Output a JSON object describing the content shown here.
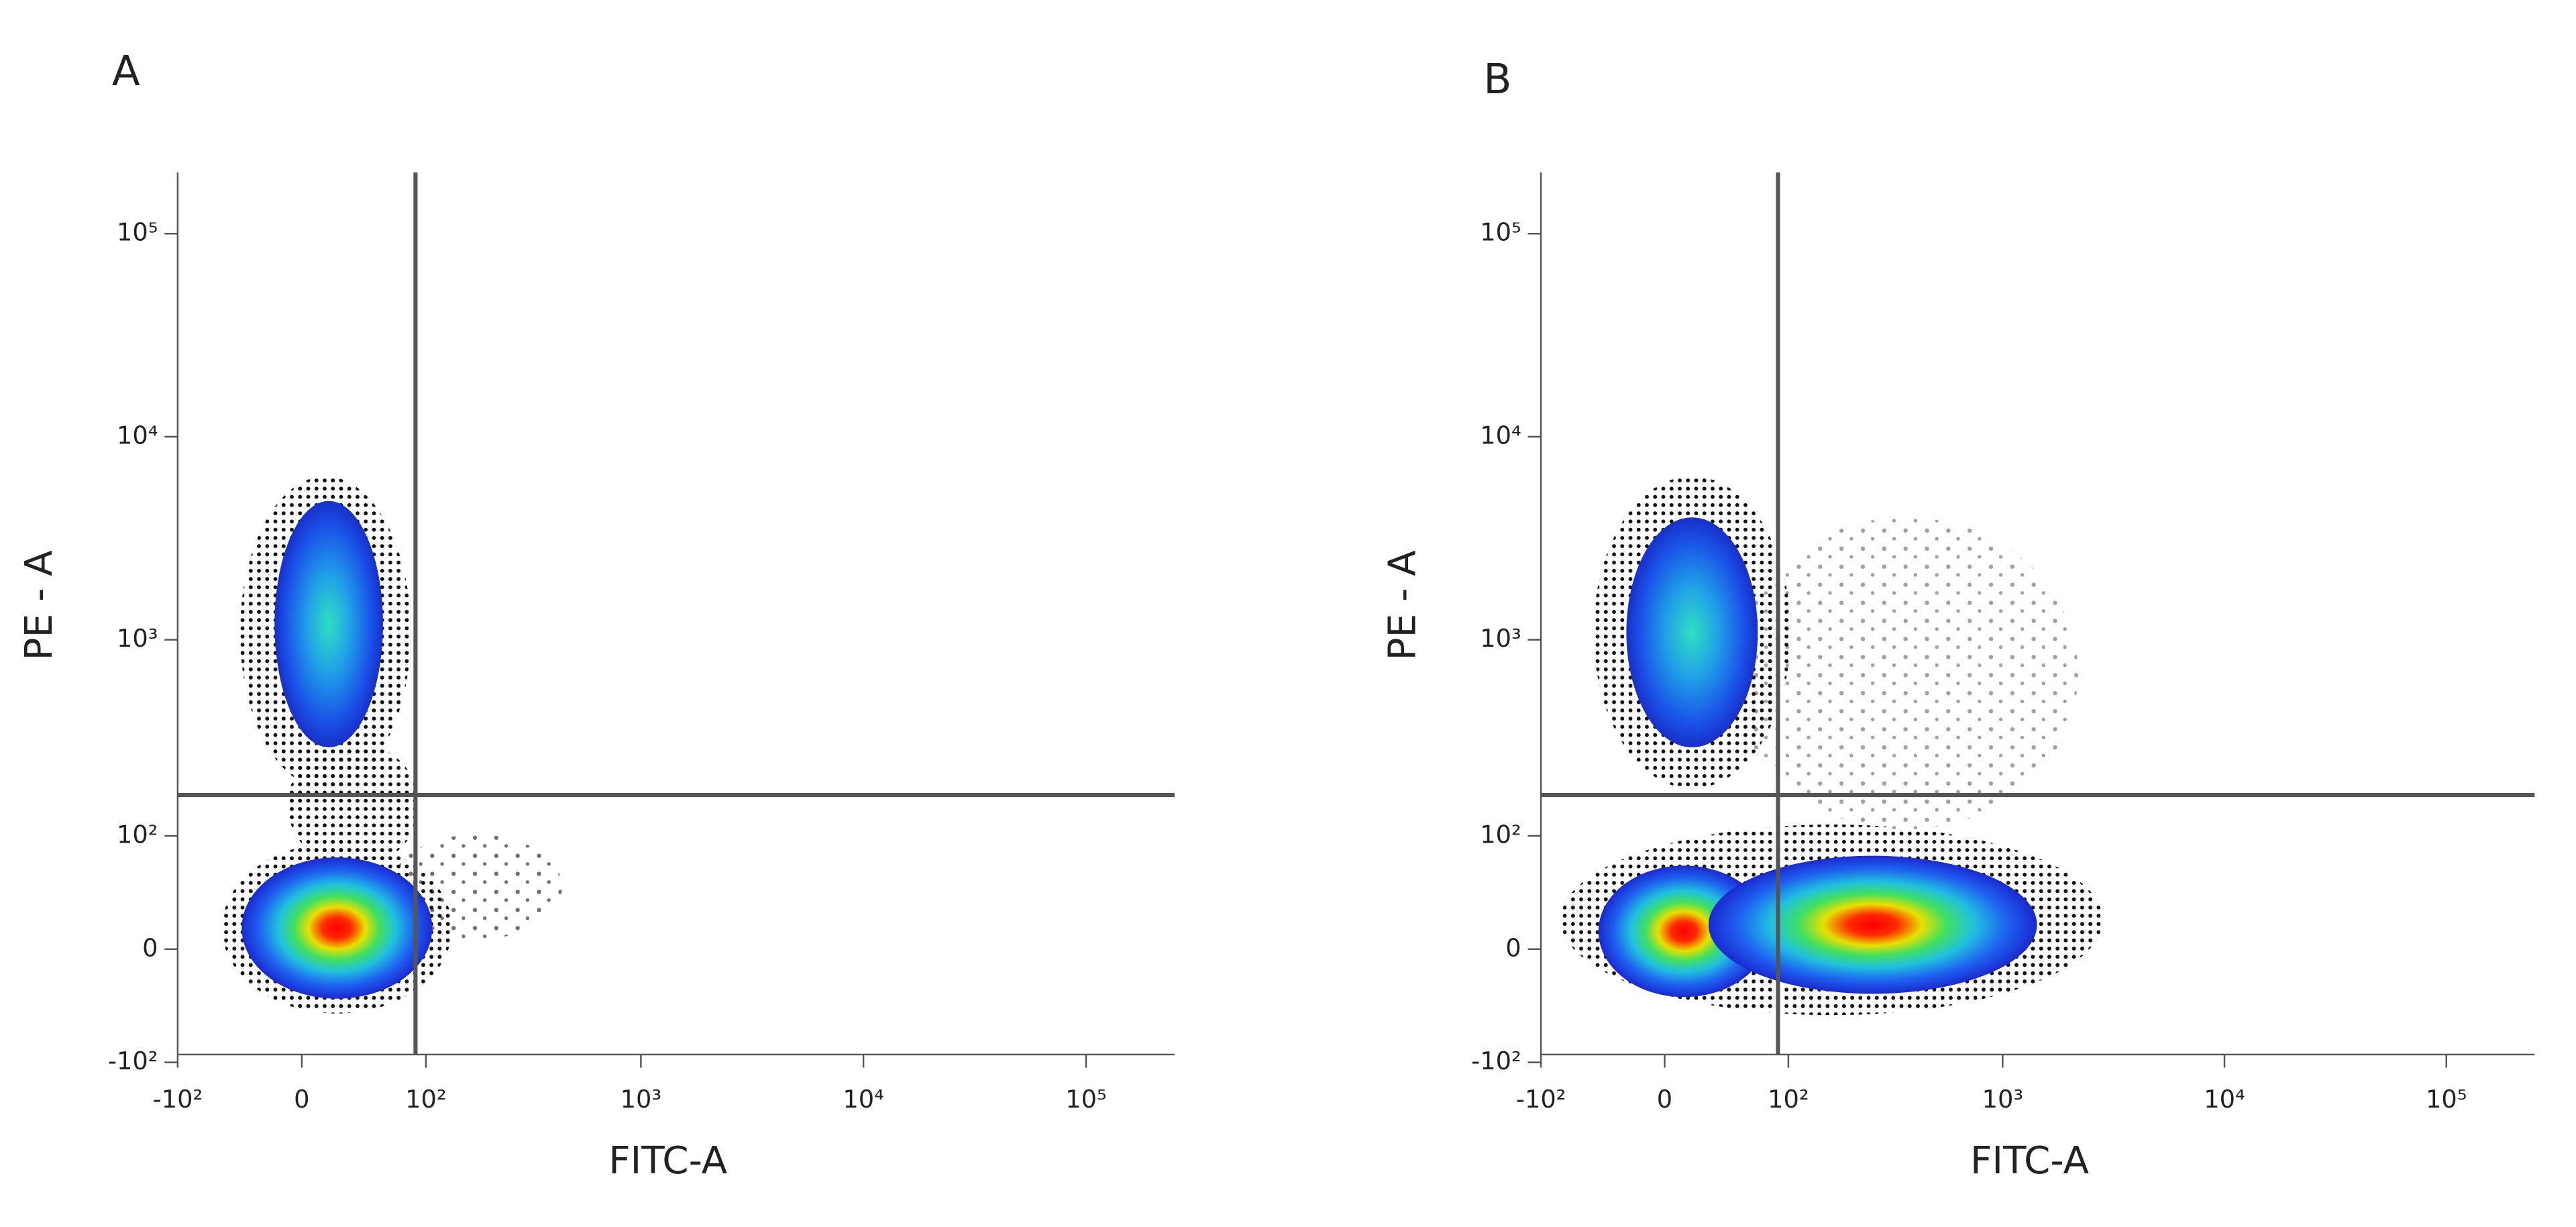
{
  "chart_data": [
    {
      "type": "scatter",
      "panel_label": "A",
      "x_label": "FITC-A",
      "y_label": "PE - A",
      "xscale": "biexponential",
      "yscale": "biexponential",
      "xlim": [
        -100,
        250000
      ],
      "ylim": [
        -90,
        200000
      ],
      "xticks": [
        {
          "value": -100,
          "label": "-10²"
        },
        0,
        {
          "value": 100,
          "label": "10²"
        },
        {
          "value": 1000,
          "label": "10³"
        },
        {
          "value": 10000,
          "label": "10⁴"
        },
        {
          "value": 100000,
          "label": "10⁵"
        }
      ],
      "yticks": [
        {
          "value": -100,
          "label": "-10²"
        },
        0,
        {
          "value": 100,
          "label": "10²"
        },
        {
          "value": 1000,
          "label": "10³"
        },
        {
          "value": 10000,
          "label": "10⁴"
        },
        {
          "value": 100000,
          "label": "10⁵"
        }
      ],
      "gates": {
        "x": 88,
        "y": 167
      }
    },
    {
      "type": "scatter",
      "panel_label": "B",
      "x_label": "FITC-A",
      "y_label": "PE - A",
      "xscale": "biexponential",
      "yscale": "biexponential",
      "xlim": [
        -100,
        250000
      ],
      "ylim": [
        -90,
        200000
      ],
      "xticks": [
        {
          "value": -100,
          "label": "-10²"
        },
        0,
        {
          "value": 100,
          "label": "10²"
        },
        {
          "value": 1000,
          "label": "10³"
        },
        {
          "value": 10000,
          "label": "10⁴"
        },
        {
          "value": 100000,
          "label": "10⁵"
        }
      ],
      "yticks": [
        {
          "value": -100,
          "label": "-10²"
        },
        0,
        {
          "value": 100,
          "label": "10²"
        },
        {
          "value": 1000,
          "label": "10³"
        },
        {
          "value": 10000,
          "label": "10⁴"
        },
        {
          "value": 100000,
          "label": "10⁵"
        }
      ],
      "gates": {
        "x": 88,
        "y": 167
      }
    }
  ]
}
